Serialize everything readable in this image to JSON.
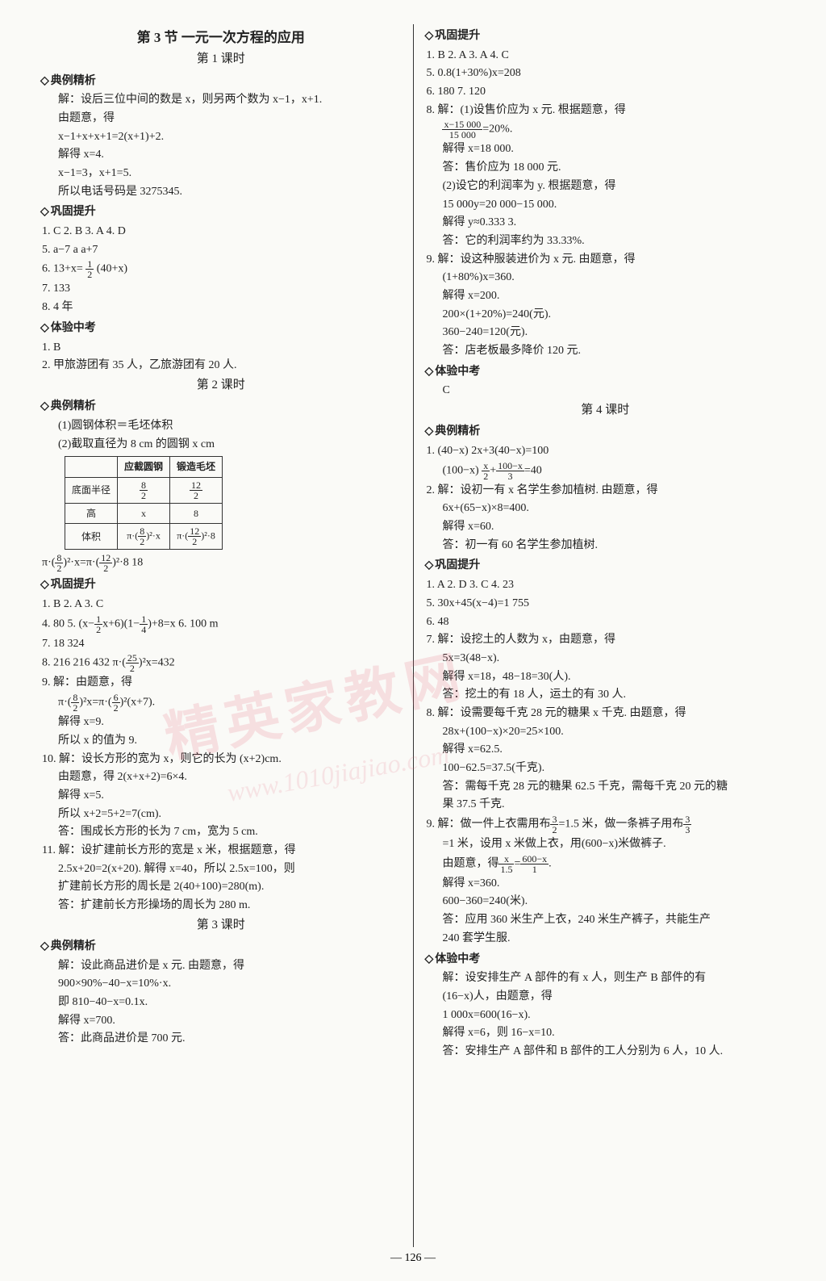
{
  "page_number": "— 126 —",
  "watermark_main": "精英家教网",
  "watermark_sub": "www.1010jiajiao.com",
  "left": {
    "section_title": "第 3 节  一元一次方程的应用",
    "lesson1_title": "第 1 课时",
    "h_dljx": "典例精析",
    "dljx1": [
      "解：设后三位中间的数是 x，则另两个数为 x−1，x+1.",
      "由题意，得",
      "x−1+x+x+1=2(x+1)+2.",
      "解得 x=4.",
      "x−1=3，x+1=5.",
      "所以电话号码是 3275345."
    ],
    "h_ggts": "巩固提升",
    "ggts1": [
      "1. C  2. B  3. A  4. D",
      "5. a−7   a   a+7"
    ],
    "ggts1_6_pre": "6. 13+x=",
    "ggts1_6_frac_n": "1",
    "ggts1_6_frac_d": "2",
    "ggts1_6_post": "(40+x)",
    "ggts1_rest": [
      "7. 133",
      "8. 4 年"
    ],
    "h_tyzk": "体验中考",
    "tyzk1": [
      "1. B",
      "2. 甲旅游团有 35 人，乙旅游团有 20 人."
    ],
    "lesson2_title": "第 2 课时",
    "dljx2_intro": [
      "(1)圆钢体积＝毛坯体积",
      "(2)截取直径为 8 cm 的圆钢 x cm"
    ],
    "table": {
      "headers": [
        "",
        "应截圆钢",
        "锻造毛坯"
      ],
      "row1_label": "底面半径",
      "row1_c1_n": "8",
      "row1_c1_d": "2",
      "row1_c2_n": "12",
      "row1_c2_d": "2",
      "row2": [
        "高",
        "x",
        "8"
      ],
      "row3_label": "体积",
      "row3_c1_a": "π·",
      "row3_c1_n": "8",
      "row3_c1_d": "2",
      "row3_c1_b": "²·x",
      "row3_c2_a": "π·",
      "row3_c2_n": "12",
      "row3_c2_d": "2",
      "row3_c2_b": "²·8"
    },
    "eq_after_table_a": "π·",
    "eq_after_table_n1": "8",
    "eq_after_table_d1": "2",
    "eq_after_table_mid": "²·x=π·",
    "eq_after_table_n2": "12",
    "eq_after_table_d2": "2",
    "eq_after_table_end": "²·8  18",
    "ggts2_simple": [
      "1. B  2. A  3. C"
    ],
    "ggts2_4_a": "4. 80  5. ",
    "ggts2_5_pre": "(x−",
    "ggts2_5_n1": "1",
    "ggts2_5_d1": "2",
    "ggts2_5_mid": "x+6)(1−",
    "ggts2_5_n2": "1",
    "ggts2_5_d2": "4",
    "ggts2_5_post": ")+8=x  6. 100 m",
    "ggts2_rest1": "7. 18  324",
    "ggts2_8_a": "8. 216  216  432  π·",
    "ggts2_8_n": "25",
    "ggts2_8_d": "2",
    "ggts2_8_b": "²x=432",
    "ggts2_9_head": "9. 解：由题意，得",
    "ggts2_9_eq_a": "π·",
    "ggts2_9_n1": "8",
    "ggts2_9_d1": "2",
    "ggts2_9_mid": "²x=π·",
    "ggts2_9_n2": "6",
    "ggts2_9_d2": "2",
    "ggts2_9_end": "²(x+7).",
    "ggts2_9_rest": [
      "解得 x=9.",
      "所以 x 的值为 9."
    ],
    "ggts2_10": [
      "10. 解：设长方形的宽为 x，则它的长为 (x+2)cm.",
      "由题意，得 2(x+x+2)=6×4.",
      "解得 x=5.",
      "所以 x+2=5+2=7(cm).",
      "答：围成长方形的长为 7 cm，宽为 5 cm."
    ],
    "ggts2_11": [
      "11. 解：设扩建前长方形的宽是 x 米，根据题意，得",
      "2.5x+20=2(x+20). 解得 x=40，所以 2.5x=100，则",
      "扩建前长方形的周长是 2(40+100)=280(m).",
      "答：扩建前长方形操场的周长为 280 m."
    ],
    "lesson3_title": "第 3 课时",
    "dljx3": [
      "解：设此商品进价是 x 元. 由题意，得",
      "900×90%−40−x=10%·x.",
      "即 810−40−x=0.1x.",
      "解得 x=700.",
      "答：此商品进价是 700 元."
    ]
  },
  "right": {
    "h_ggts": "巩固提升",
    "ggts3_1": "1. B  2. A  3. A  4. C",
    "ggts3_5": "5. 0.8(1+30%)x=208",
    "ggts3_67": "6. 180  7. 120",
    "ggts3_8_head": "8. 解：(1)设售价应为 x 元. 根据题意，得",
    "ggts3_8_frac_n": "x−15 000",
    "ggts3_8_frac_d": "15 000",
    "ggts3_8_frac_post": "=20%.",
    "ggts3_8_rest": [
      "解得 x=18 000.",
      "答：售价应为 18 000 元.",
      "(2)设它的利润率为 y. 根据题意，得",
      "15 000y=20 000−15 000.",
      "解得 y≈0.333 3.",
      "答：它的利润率约为 33.33%."
    ],
    "ggts3_9": [
      "9. 解：设这种服装进价为 x 元. 由题意，得",
      "(1+80%)x=360.",
      "解得 x=200.",
      "200×(1+20%)=240(元).",
      "360−240=120(元).",
      "答：店老板最多降价 120 元."
    ],
    "h_tyzk": "体验中考",
    "tyzk3": "C",
    "lesson4_title": "第 4 课时",
    "h_dljx": "典例精析",
    "dljx4_1_a": "1. (40−x)  2x+3(40−x)=100",
    "dljx4_1_b_pre": "(100−x)  ",
    "dljx4_1_b_n1": "x",
    "dljx4_1_b_d1": "2",
    "dljx4_1_b_mid": "+",
    "dljx4_1_b_n2": "100−x",
    "dljx4_1_b_d2": "3",
    "dljx4_1_b_post": "=40",
    "dljx4_2": [
      "2. 解：设初一有 x 名学生参加植树. 由题意，得",
      "6x+(65−x)×8=400.",
      "解得 x=60.",
      "答：初一有 60 名学生参加植树."
    ],
    "ggts4_1": "1. A  2. D  3. C  4. 23",
    "ggts4_5": "5. 30x+45(x−4)=1 755",
    "ggts4_6": "6. 48",
    "ggts4_7": [
      "7. 解：设挖土的人数为 x，由题意，得",
      "5x=3(48−x).",
      "解得 x=18，48−18=30(人).",
      "答：挖土的有 18 人，运土的有 30 人."
    ],
    "ggts4_8": [
      "8. 解：设需要每千克 28 元的糖果 x 千克. 由题意，得",
      "28x+(100−x)×20=25×100.",
      "解得 x=62.5.",
      "100−62.5=37.5(千克).",
      "答：需每千克 28 元的糖果 62.5 千克，需每千克 20 元的糖",
      "果 37.5 千克."
    ],
    "ggts4_9_head": "9. 解：做一件上衣需用布",
    "ggts4_9_n1": "3",
    "ggts4_9_d1": "2",
    "ggts4_9_mid1": "=1.5 米，做一条裤子用布",
    "ggts4_9_n2": "3",
    "ggts4_9_d2": "3",
    "ggts4_9_line2": "=1 米，设用 x 米做上衣，用(600−x)米做裤子.",
    "ggts4_9_eq_pre": "由题意，得",
    "ggts4_9_eq_n1": "x",
    "ggts4_9_eq_d1": "1.5",
    "ggts4_9_eq_mid": "=",
    "ggts4_9_eq_n2": "600−x",
    "ggts4_9_eq_d2": "1",
    "ggts4_9_eq_end": ".",
    "ggts4_9_rest": [
      "解得 x=360.",
      "600−360=240(米).",
      "答：应用 360 米生产上衣，240 米生产裤子，共能生产",
      "240 套学生服."
    ],
    "tyzk4": [
      "解：设安排生产 A 部件的有 x 人，则生产 B 部件的有",
      "(16−x)人，由题意，得",
      "1 000x=600(16−x).",
      "解得 x=6，则 16−x=10.",
      "答：安排生产 A 部件和 B 部件的工人分别为 6 人，10 人."
    ]
  }
}
